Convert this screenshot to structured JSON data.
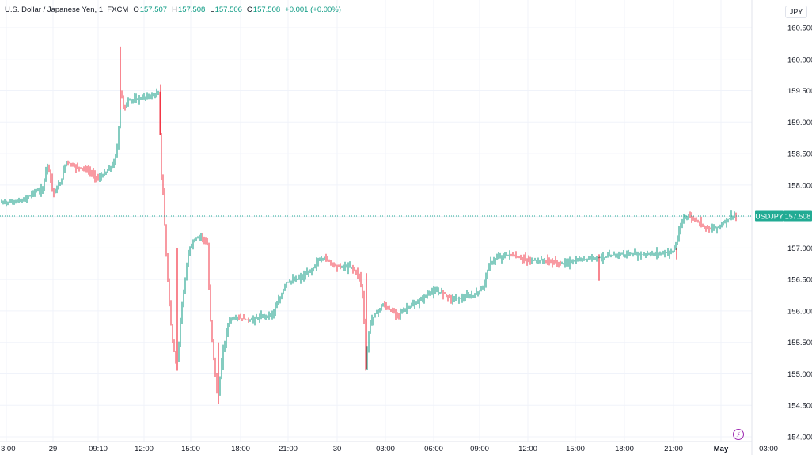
{
  "legend": {
    "symbol": "U.S. Dollar / Japanese Yen",
    "interval": "1",
    "exchange": "FXCM",
    "open_label": "O",
    "open": "157.507",
    "high_label": "H",
    "high": "157.508",
    "low_label": "L",
    "low": "157.506",
    "close_label": "C",
    "close": "157.508",
    "change": "+0.001 (+0.00%)"
  },
  "currency_button": "JPY",
  "price_tag": {
    "symbol": "USDJPY",
    "value": "157.508"
  },
  "colors": {
    "up": "#089981",
    "down": "#f23645",
    "grid": "#f0f3fa",
    "last_price": "#22ab94",
    "event_icon": "#9c27b0"
  },
  "event_icon": "lightning-bolt-icon",
  "chart_data": {
    "type": "candlestick",
    "symbol": "USDJPY",
    "ylim": [
      154.0,
      160.75
    ],
    "y_ticks": [
      "160.500",
      "160.000",
      "159.500",
      "159.000",
      "158.500",
      "158.000",
      "157.500",
      "157.000",
      "156.500",
      "156.000",
      "155.500",
      "155.000",
      "154.500",
      "154.000"
    ],
    "x_ticks": [
      "3:00",
      "29",
      "09:10",
      "12:00",
      "15:00",
      "18:00",
      "21:00",
      "30",
      "03:00",
      "06:00",
      "09:00",
      "12:00",
      "15:00",
      "18:00",
      "21:00",
      "May",
      "03:00"
    ],
    "x_ticks_bold": [
      "May"
    ],
    "last_price": 157.508,
    "price_path": [
      [
        0,
        157.72
      ],
      [
        30,
        157.75
      ],
      [
        45,
        157.9
      ],
      [
        55,
        157.92
      ],
      [
        60,
        158.35
      ],
      [
        64,
        158.2
      ],
      [
        68,
        157.85
      ],
      [
        78,
        158.05
      ],
      [
        84,
        158.38
      ],
      [
        95,
        158.3
      ],
      [
        110,
        158.25
      ],
      [
        125,
        158.1
      ],
      [
        135,
        158.2
      ],
      [
        145,
        158.35
      ],
      [
        150,
        158.65
      ],
      [
        153,
        159.5
      ],
      [
        158,
        159.2
      ],
      [
        163,
        159.35
      ],
      [
        170,
        159.35
      ],
      [
        185,
        159.4
      ],
      [
        202,
        159.45
      ],
      [
        204,
        158.2
      ],
      [
        207,
        157.9
      ],
      [
        210,
        157.1
      ],
      [
        214,
        156.3
      ],
      [
        218,
        155.6
      ],
      [
        224,
        155.1
      ],
      [
        232,
        156.2
      ],
      [
        240,
        157.0
      ],
      [
        248,
        157.15
      ],
      [
        255,
        157.2
      ],
      [
        263,
        157.05
      ],
      [
        266,
        156.0
      ],
      [
        270,
        155.4
      ],
      [
        276,
        154.55
      ],
      [
        282,
        155.3
      ],
      [
        290,
        155.85
      ],
      [
        300,
        155.9
      ],
      [
        315,
        155.85
      ],
      [
        330,
        155.9
      ],
      [
        345,
        155.95
      ],
      [
        355,
        156.2
      ],
      [
        362,
        156.45
      ],
      [
        375,
        156.5
      ],
      [
        385,
        156.55
      ],
      [
        395,
        156.65
      ],
      [
        403,
        156.8
      ],
      [
        412,
        156.85
      ],
      [
        420,
        156.75
      ],
      [
        430,
        156.7
      ],
      [
        445,
        156.7
      ],
      [
        455,
        156.55
      ],
      [
        460,
        156.2
      ],
      [
        463,
        155.1
      ],
      [
        468,
        155.8
      ],
      [
        475,
        155.95
      ],
      [
        485,
        156.1
      ],
      [
        495,
        156.0
      ],
      [
        505,
        155.95
      ],
      [
        515,
        156.05
      ],
      [
        525,
        156.1
      ],
      [
        535,
        156.2
      ],
      [
        545,
        156.3
      ],
      [
        560,
        156.3
      ],
      [
        570,
        156.2
      ],
      [
        585,
        156.2
      ],
      [
        600,
        156.25
      ],
      [
        610,
        156.35
      ],
      [
        620,
        156.75
      ],
      [
        630,
        156.85
      ],
      [
        645,
        156.9
      ],
      [
        655,
        156.85
      ],
      [
        670,
        156.8
      ],
      [
        690,
        156.8
      ],
      [
        710,
        156.75
      ],
      [
        730,
        156.8
      ],
      [
        750,
        156.85
      ],
      [
        765,
        156.85
      ],
      [
        780,
        156.9
      ],
      [
        800,
        156.9
      ],
      [
        820,
        156.9
      ],
      [
        840,
        156.92
      ],
      [
        852,
        156.95
      ],
      [
        858,
        157.2
      ],
      [
        865,
        157.5
      ],
      [
        872,
        157.5
      ],
      [
        880,
        157.45
      ],
      [
        890,
        157.35
      ],
      [
        900,
        157.3
      ],
      [
        910,
        157.35
      ],
      [
        920,
        157.45
      ],
      [
        928,
        157.52
      ],
      [
        931,
        157.508
      ]
    ],
    "spikes": [
      [
        152,
        160.2,
        159.2
      ],
      [
        203,
        159.6,
        158.8
      ],
      [
        224,
        157.0,
        155.05
      ],
      [
        276,
        155.5,
        154.52
      ],
      [
        463,
        156.6,
        155.08
      ],
      [
        757,
        156.9,
        156.48
      ],
      [
        855,
        157.0,
        156.82
      ]
    ]
  }
}
